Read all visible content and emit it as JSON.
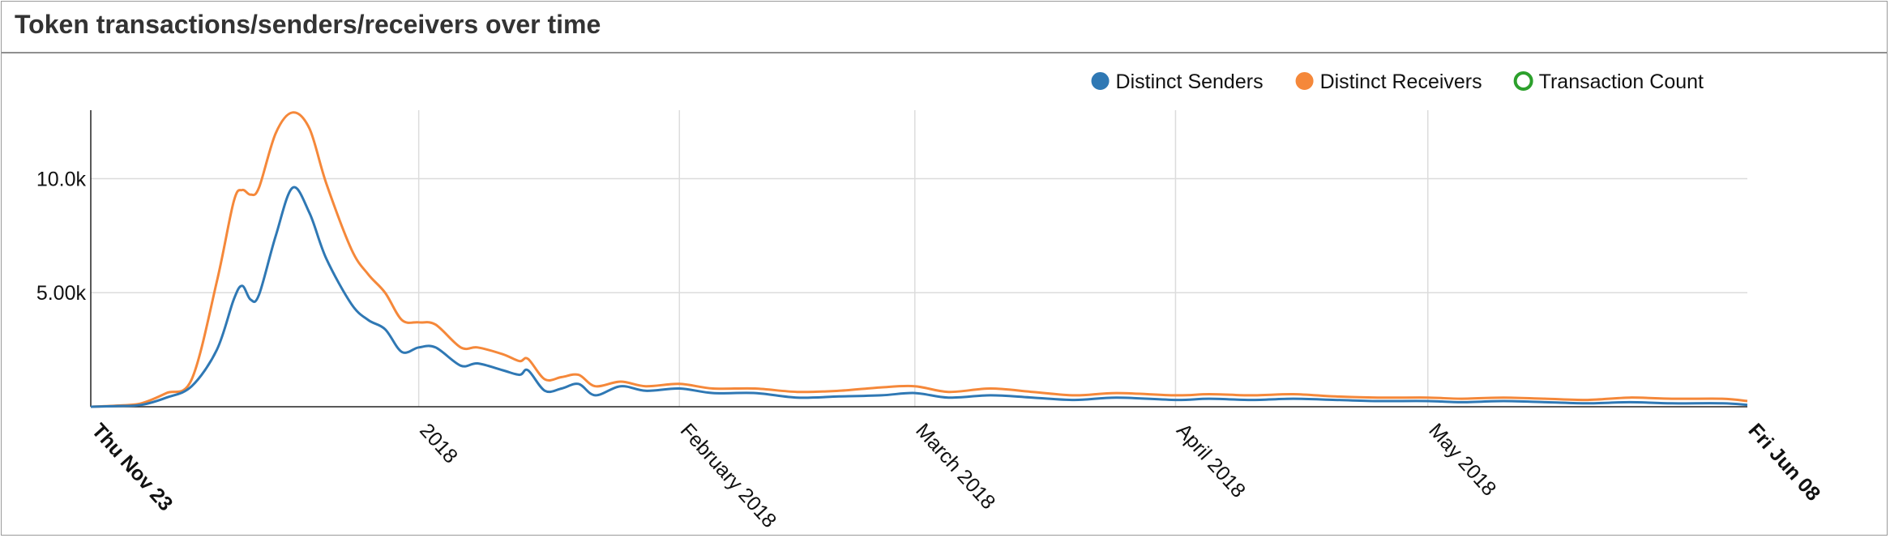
{
  "window": {
    "title": "Token transactions/senders/receivers over time"
  },
  "chart_data": {
    "type": "line",
    "title": "Token transactions/senders/receivers over time",
    "x_range": [
      "2017-11-23",
      "2018-06-08"
    ],
    "ylim": [
      0,
      13000
    ],
    "y_ticks": [
      {
        "value": 5000,
        "label": "5.00k"
      },
      {
        "value": 10000,
        "label": "10.0k"
      }
    ],
    "x_ticks": [
      {
        "date": "2017-11-23",
        "label": "Thu Nov 23",
        "bold": true
      },
      {
        "date": "2018-01-01",
        "label": "2018",
        "bold": false
      },
      {
        "date": "2018-02-01",
        "label": "February 2018",
        "bold": false
      },
      {
        "date": "2018-03-01",
        "label": "March 2018",
        "bold": false
      },
      {
        "date": "2018-04-01",
        "label": "April 2018",
        "bold": false
      },
      {
        "date": "2018-05-01",
        "label": "May 2018",
        "bold": false
      },
      {
        "date": "2018-06-08",
        "label": "Fri Jun 08",
        "bold": true
      }
    ],
    "grid": true,
    "legend_position": "top-right",
    "series": [
      {
        "name": "Distinct Senders",
        "color": "#2f78b4",
        "visible": true,
        "points": [
          [
            "2017-11-23",
            0
          ],
          [
            "2017-11-26",
            30
          ],
          [
            "2017-11-29",
            80
          ],
          [
            "2017-12-02",
            400
          ],
          [
            "2017-12-05",
            900
          ],
          [
            "2017-12-08",
            2500
          ],
          [
            "2017-12-10",
            4700
          ],
          [
            "2017-12-11",
            5300
          ],
          [
            "2017-12-12",
            4700
          ],
          [
            "2017-12-13",
            4900
          ],
          [
            "2017-12-15",
            7500
          ],
          [
            "2017-12-17",
            9600
          ],
          [
            "2017-12-19",
            8500
          ],
          [
            "2017-12-21",
            6500
          ],
          [
            "2017-12-24",
            4500
          ],
          [
            "2017-12-26",
            3800
          ],
          [
            "2017-12-28",
            3400
          ],
          [
            "2017-12-30",
            2400
          ],
          [
            "2018-01-01",
            2600
          ],
          [
            "2018-01-03",
            2600
          ],
          [
            "2018-01-06",
            1800
          ],
          [
            "2018-01-08",
            1900
          ],
          [
            "2018-01-11",
            1600
          ],
          [
            "2018-01-13",
            1400
          ],
          [
            "2018-01-14",
            1600
          ],
          [
            "2018-01-16",
            700
          ],
          [
            "2018-01-18",
            800
          ],
          [
            "2018-01-20",
            1000
          ],
          [
            "2018-01-22",
            500
          ],
          [
            "2018-01-25",
            900
          ],
          [
            "2018-01-28",
            700
          ],
          [
            "2018-02-01",
            800
          ],
          [
            "2018-02-05",
            600
          ],
          [
            "2018-02-10",
            600
          ],
          [
            "2018-02-15",
            400
          ],
          [
            "2018-02-20",
            450
          ],
          [
            "2018-02-25",
            500
          ],
          [
            "2018-03-01",
            600
          ],
          [
            "2018-03-05",
            400
          ],
          [
            "2018-03-10",
            500
          ],
          [
            "2018-03-15",
            400
          ],
          [
            "2018-03-20",
            300
          ],
          [
            "2018-03-25",
            400
          ],
          [
            "2018-04-01",
            300
          ],
          [
            "2018-04-05",
            350
          ],
          [
            "2018-04-10",
            300
          ],
          [
            "2018-04-15",
            350
          ],
          [
            "2018-04-20",
            300
          ],
          [
            "2018-04-25",
            250
          ],
          [
            "2018-05-01",
            250
          ],
          [
            "2018-05-05",
            200
          ],
          [
            "2018-05-10",
            250
          ],
          [
            "2018-05-15",
            200
          ],
          [
            "2018-05-20",
            150
          ],
          [
            "2018-05-25",
            200
          ],
          [
            "2018-05-30",
            150
          ],
          [
            "2018-06-05",
            150
          ],
          [
            "2018-06-08",
            80
          ]
        ]
      },
      {
        "name": "Distinct Receivers",
        "color": "#f5883a",
        "visible": true,
        "points": [
          [
            "2017-11-23",
            0
          ],
          [
            "2017-11-26",
            50
          ],
          [
            "2017-11-29",
            150
          ],
          [
            "2017-12-02",
            600
          ],
          [
            "2017-12-05",
            1200
          ],
          [
            "2017-12-08",
            5500
          ],
          [
            "2017-12-10",
            9000
          ],
          [
            "2017-12-11",
            9500
          ],
          [
            "2017-12-12",
            9300
          ],
          [
            "2017-12-13",
            9600
          ],
          [
            "2017-12-15",
            12000
          ],
          [
            "2017-12-17",
            12900
          ],
          [
            "2017-12-19",
            12200
          ],
          [
            "2017-12-21",
            9800
          ],
          [
            "2017-12-24",
            6900
          ],
          [
            "2017-12-26",
            5800
          ],
          [
            "2017-12-28",
            5000
          ],
          [
            "2017-12-30",
            3800
          ],
          [
            "2018-01-01",
            3700
          ],
          [
            "2018-01-03",
            3600
          ],
          [
            "2018-01-06",
            2600
          ],
          [
            "2018-01-08",
            2600
          ],
          [
            "2018-01-11",
            2300
          ],
          [
            "2018-01-13",
            2000
          ],
          [
            "2018-01-14",
            2100
          ],
          [
            "2018-01-16",
            1200
          ],
          [
            "2018-01-18",
            1300
          ],
          [
            "2018-01-20",
            1400
          ],
          [
            "2018-01-22",
            900
          ],
          [
            "2018-01-25",
            1100
          ],
          [
            "2018-01-28",
            900
          ],
          [
            "2018-02-01",
            1000
          ],
          [
            "2018-02-05",
            800
          ],
          [
            "2018-02-10",
            800
          ],
          [
            "2018-02-15",
            650
          ],
          [
            "2018-02-20",
            700
          ],
          [
            "2018-02-25",
            850
          ],
          [
            "2018-03-01",
            900
          ],
          [
            "2018-03-05",
            650
          ],
          [
            "2018-03-10",
            800
          ],
          [
            "2018-03-15",
            650
          ],
          [
            "2018-03-20",
            500
          ],
          [
            "2018-03-25",
            600
          ],
          [
            "2018-04-01",
            500
          ],
          [
            "2018-04-05",
            550
          ],
          [
            "2018-04-10",
            500
          ],
          [
            "2018-04-15",
            550
          ],
          [
            "2018-04-20",
            450
          ],
          [
            "2018-04-25",
            400
          ],
          [
            "2018-05-01",
            400
          ],
          [
            "2018-05-05",
            350
          ],
          [
            "2018-05-10",
            400
          ],
          [
            "2018-05-15",
            350
          ],
          [
            "2018-05-20",
            300
          ],
          [
            "2018-05-25",
            400
          ],
          [
            "2018-05-30",
            350
          ],
          [
            "2018-06-05",
            350
          ],
          [
            "2018-06-08",
            250
          ]
        ]
      },
      {
        "name": "Transaction Count",
        "color": "#2ca02c",
        "visible": false,
        "points": []
      }
    ]
  }
}
